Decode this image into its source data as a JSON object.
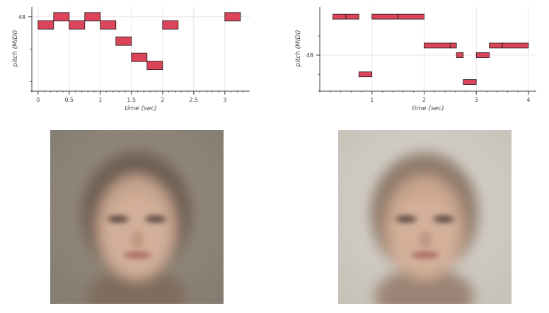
{
  "chart_data": [
    {
      "type": "piano-roll",
      "xlabel": "time (sec)",
      "ylabel": "pitch (MIDI)",
      "x_ticks": [
        0,
        0.5,
        1,
        1.5,
        2,
        2.5,
        3
      ],
      "x_tick_labels": [
        "0",
        "0.5",
        "1",
        "1.5",
        "2",
        "2.5",
        "3"
      ],
      "y_ticks": [
        48
      ],
      "y_tick_labels": [
        "48"
      ],
      "xlim": [
        -0.1,
        3.4
      ],
      "ylim": [
        43.5,
        48.6
      ],
      "grid": true,
      "notes": [
        {
          "start": 0.0,
          "end": 0.25,
          "pitch": 47.5
        },
        {
          "start": 0.25,
          "end": 0.5,
          "pitch": 48
        },
        {
          "start": 0.5,
          "end": 0.75,
          "pitch": 47.5
        },
        {
          "start": 0.75,
          "end": 1.0,
          "pitch": 48
        },
        {
          "start": 1.0,
          "end": 1.25,
          "pitch": 47.5
        },
        {
          "start": 1.25,
          "end": 1.5,
          "pitch": 46.5
        },
        {
          "start": 1.5,
          "end": 1.75,
          "pitch": 45.5
        },
        {
          "start": 1.75,
          "end": 2.0,
          "pitch": 45
        },
        {
          "start": 2.0,
          "end": 2.25,
          "pitch": 47.5
        },
        {
          "start": 3.0,
          "end": 3.25,
          "pitch": 48
        }
      ]
    },
    {
      "type": "piano-roll",
      "xlabel": "time (sec)",
      "ylabel": "pitch (MIDI)",
      "x_ticks": [
        1,
        2,
        3,
        4
      ],
      "x_tick_labels": [
        "1",
        "2",
        "3",
        "4"
      ],
      "y_ticks": [
        48
      ],
      "y_tick_labels": [
        "48"
      ],
      "xlim": [
        0.0,
        4.15
      ],
      "ylim": [
        46.2,
        50.5
      ],
      "grid": true,
      "notes": [
        {
          "start": 0.25,
          "end": 0.5,
          "pitch": 50
        },
        {
          "start": 0.5,
          "end": 0.75,
          "pitch": 50
        },
        {
          "start": 0.75,
          "end": 1.0,
          "pitch": 47
        },
        {
          "start": 1.0,
          "end": 1.5,
          "pitch": 50
        },
        {
          "start": 1.5,
          "end": 2.0,
          "pitch": 50
        },
        {
          "start": 2.0,
          "end": 2.5,
          "pitch": 48.5
        },
        {
          "start": 2.5,
          "end": 2.62,
          "pitch": 48.5
        },
        {
          "start": 2.62,
          "end": 2.75,
          "pitch": 48
        },
        {
          "start": 2.75,
          "end": 3.0,
          "pitch": 46.6
        },
        {
          "start": 3.0,
          "end": 3.25,
          "pitch": 48
        },
        {
          "start": 3.25,
          "end": 3.5,
          "pitch": 48.5
        },
        {
          "start": 3.5,
          "end": 4.0,
          "pitch": 48.5
        }
      ]
    }
  ],
  "colors": {
    "note_fill": "#dc4459",
    "note_stroke": "#1a1a1a",
    "grid": "#e6e6e6",
    "axis": "#444444",
    "face1_background": "#8f8678",
    "face2_background": "#cfcac2"
  },
  "images": [
    {
      "name": "average-face-dark",
      "description_icon": "face-image"
    },
    {
      "name": "average-face-light",
      "description_icon": "face-image"
    }
  ]
}
